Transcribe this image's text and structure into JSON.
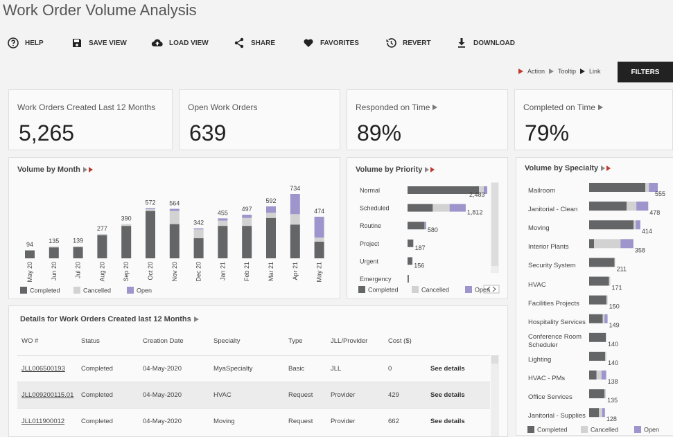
{
  "header": {
    "title": "Work Order Volume Analysis",
    "toolbar": [
      "HELP",
      "SAVE VIEW",
      "LOAD VIEW",
      "SHARE",
      "FAVORITES",
      "REVERT",
      "DOWNLOAD"
    ],
    "hints": [
      "Action",
      "Tooltip",
      "Link"
    ],
    "filters": "FILTERS"
  },
  "kpis": [
    {
      "label": "Work Orders Created Last 12 Months",
      "value": "5,265"
    },
    {
      "label": "Open Work Orders",
      "value": "639"
    },
    {
      "label": "Responded on Time",
      "value": "89%"
    },
    {
      "label": "Completed on Time",
      "value": "79%"
    }
  ],
  "chart_data": [
    {
      "type": "bar",
      "orientation": "vertical",
      "stacked": true,
      "title": "Volume by Month",
      "categories": [
        "May 20",
        "Jun 20",
        "Jul 20",
        "Aug 20",
        "Sep 20",
        "Oct 20",
        "Nov 20",
        "Dec 20",
        "Jan 21",
        "Feb 21",
        "Mar 21",
        "Apr 21",
        "May 21"
      ],
      "series": [
        {
          "name": "Completed",
          "color": "#646567",
          "values": [
            90,
            125,
            128,
            265,
            370,
            540,
            390,
            230,
            370,
            370,
            460,
            385,
            190
          ]
        },
        {
          "name": "Cancelled",
          "color": "#d2d2d2",
          "values": [
            4,
            10,
            11,
            12,
            20,
            20,
            150,
            100,
            60,
            90,
            60,
            118,
            47
          ]
        },
        {
          "name": "Open",
          "color": "#9d95cb",
          "values": [
            0,
            0,
            0,
            0,
            0,
            12,
            24,
            12,
            25,
            37,
            72,
            231,
            237
          ]
        }
      ],
      "totals": [
        94,
        135,
        139,
        277,
        390,
        572,
        564,
        342,
        455,
        497,
        592,
        734,
        474
      ]
    },
    {
      "type": "bar",
      "orientation": "horizontal",
      "stacked": true,
      "title": "Volume by Priority",
      "categories": [
        "Normal",
        "Scheduled",
        "Routine",
        "Project",
        "Urgent",
        "Emergency"
      ],
      "series": [
        {
          "name": "Completed",
          "color": "#646567",
          "values": [
            2224,
            786,
            530,
            180,
            150,
            40
          ]
        },
        {
          "name": "Cancelled",
          "color": "#d2d2d2",
          "values": [
            150,
            524,
            10,
            7,
            6,
            0
          ]
        },
        {
          "name": "Open",
          "color": "#9d95cb",
          "values": [
            109,
            502,
            40,
            0,
            0,
            0
          ]
        }
      ],
      "totals": [
        2483,
        1812,
        580,
        187,
        156,
        null
      ],
      "value_labels": [
        "2,483",
        "1,812",
        "580",
        "187",
        "156",
        null
      ]
    },
    {
      "type": "bar",
      "orientation": "horizontal",
      "stacked": true,
      "title": "Volume by Specialty",
      "categories": [
        "Mailroom",
        "Janitorial - Clean",
        "Moving",
        "Interior Plants",
        "Security System",
        "HVAC",
        "Facilities Projects",
        "Hospitality Services",
        "Conference Room Scheduler",
        "Lighting",
        "HVAC - PMs",
        "Office Services",
        "Janitorial - Supplies"
      ],
      "series": [
        {
          "name": "Completed",
          "color": "#646567",
          "values": [
            455,
            303,
            360,
            40,
            205,
            160,
            140,
            110,
            135,
            130,
            60,
            125,
            80
          ]
        },
        {
          "name": "Cancelled",
          "color": "#d2d2d2",
          "values": [
            28,
            79,
            17,
            214,
            6,
            11,
            10,
            14,
            5,
            10,
            40,
            10,
            25
          ]
        },
        {
          "name": "Open",
          "color": "#9d95cb",
          "values": [
            72,
            96,
            37,
            104,
            0,
            0,
            0,
            25,
            0,
            0,
            38,
            0,
            23
          ]
        }
      ],
      "totals": [
        555,
        478,
        414,
        358,
        211,
        171,
        150,
        149,
        140,
        140,
        138,
        135,
        128
      ]
    }
  ],
  "table": {
    "title": "Details for Work Orders Created last 12 Months",
    "columns": [
      "WO #",
      "Status",
      "Creation Date",
      "Specialty",
      "Type",
      "JLL/Provider",
      "Cost ($)"
    ],
    "rows": [
      [
        "JLL006500193",
        "Completed",
        "04-May-2020",
        "MyaSpecialty",
        "Basic",
        "JLL",
        0,
        "See details"
      ],
      [
        "JLL009200115.01",
        "Completed",
        "04-May-2020",
        "HVAC",
        "Request",
        "Provider",
        429,
        "See details"
      ],
      [
        "JLL011900012",
        "Completed",
        "04-May-2020",
        "Moving",
        "Request",
        "Provider",
        662,
        "See details"
      ]
    ]
  }
}
